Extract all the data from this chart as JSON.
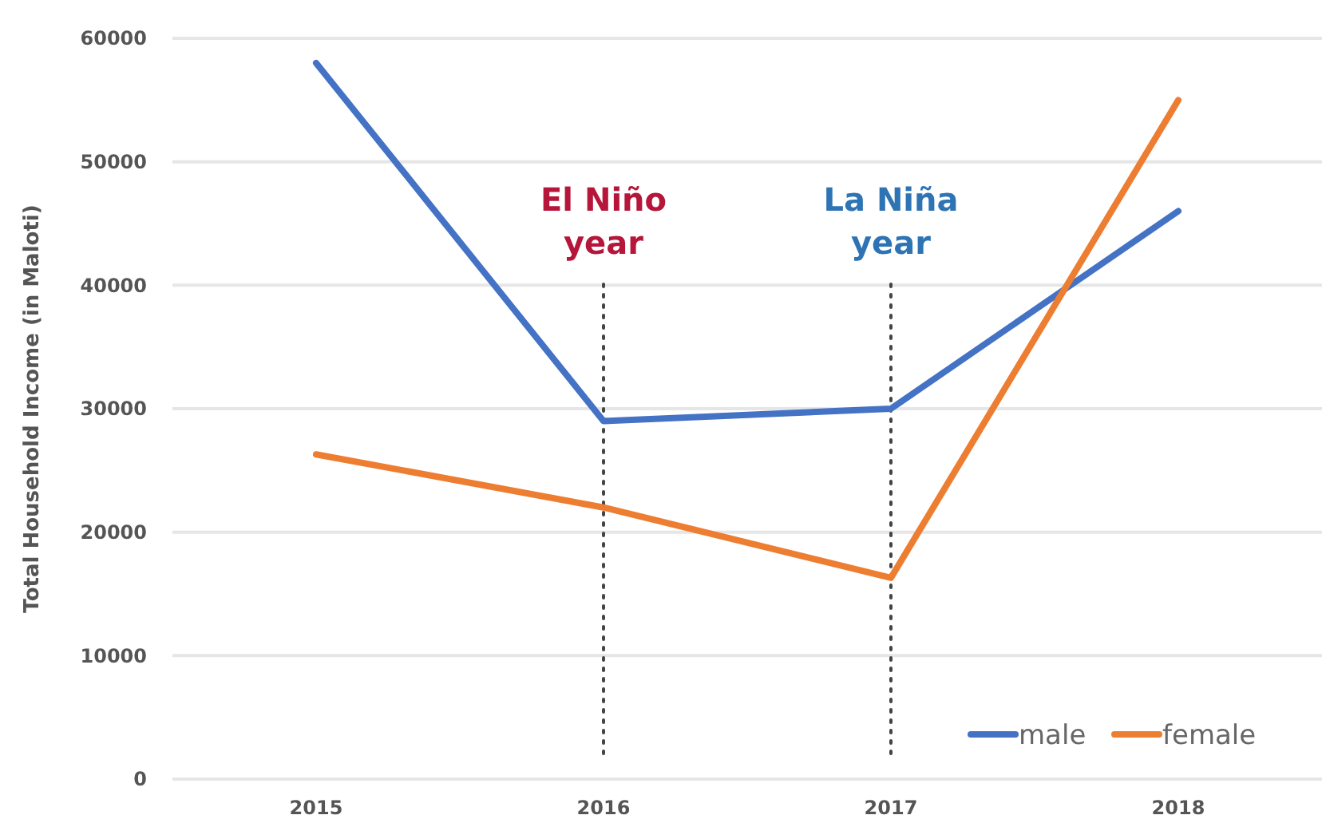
{
  "chart_data": {
    "type": "line",
    "ylabel": "Total Household Income (in  Maloti)",
    "categories": [
      "2015",
      "2016",
      "2017",
      "2018"
    ],
    "series": [
      {
        "name": "male",
        "color": "#4472c4",
        "values": [
          58000,
          29000,
          30000,
          46000
        ]
      },
      {
        "name": "female",
        "color": "#ed7d31",
        "values": [
          26300,
          22000,
          16300,
          55000
        ]
      }
    ],
    "ylim": [
      0,
      60000
    ],
    "yticks": [
      0,
      10000,
      20000,
      30000,
      40000,
      50000,
      60000
    ],
    "grid": "y",
    "legend": "bottom right",
    "marker": "none",
    "line_style": "solid",
    "ref_lines": [
      {
        "axis": "x",
        "value": "2016",
        "label": "El Niño year",
        "color": "#444444",
        "line_style": "dotted"
      },
      {
        "axis": "x",
        "value": "2017",
        "label": "La Niña year",
        "color": "#444444",
        "line_style": "dotted"
      }
    ]
  }
}
